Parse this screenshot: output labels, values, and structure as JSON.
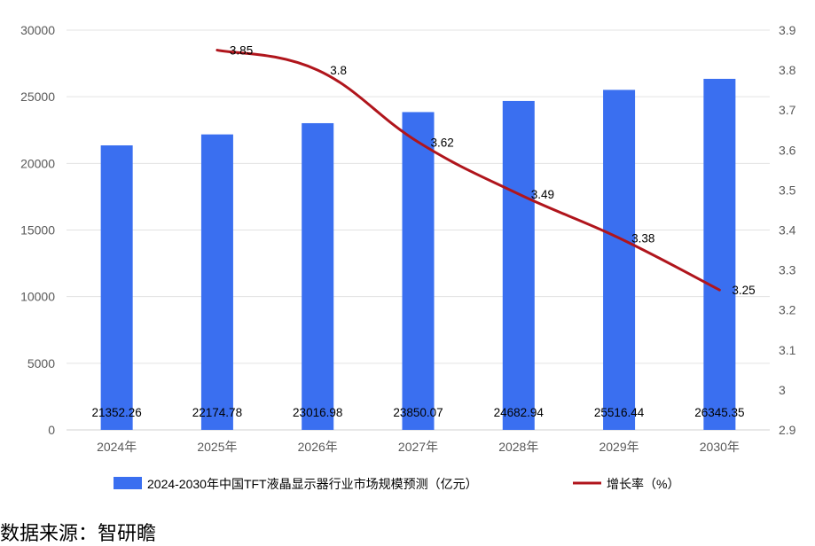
{
  "chart_data": {
    "type": "bar",
    "categories": [
      "2024年",
      "2025年",
      "2026年",
      "2027年",
      "2028年",
      "2029年",
      "2030年"
    ],
    "series": [
      {
        "name": "2024-2030年中国TFT液晶显示器行业市场规模预测（亿元）",
        "type": "bar",
        "axis": "left",
        "values": [
          21352.26,
          22174.78,
          23016.98,
          23850.07,
          24682.94,
          25516.44,
          26345.35
        ],
        "labels": [
          "21352.26",
          "22174.78",
          "23016.98",
          "23850.07",
          "24682.94",
          "25516.44",
          "26345.35"
        ],
        "color": "#3a6ff0"
      },
      {
        "name": "增长率（%）",
        "type": "line",
        "axis": "right",
        "values": [
          null,
          3.85,
          3.8,
          3.62,
          3.49,
          3.38,
          3.25
        ],
        "labels": [
          "",
          "3.85",
          "3.8",
          "3.62",
          "3.49",
          "3.38",
          "3.25"
        ],
        "color": "#b0151c"
      }
    ],
    "y_left": {
      "ylim": [
        0,
        30000
      ],
      "ticks": [
        0,
        5000,
        10000,
        15000,
        20000,
        25000,
        30000
      ],
      "tick_labels": [
        "0",
        "5000",
        "10000",
        "15000",
        "20000",
        "25000",
        "30000"
      ]
    },
    "y_right": {
      "ylim": [
        2.9,
        3.9
      ],
      "ticks": [
        2.9,
        3,
        3.1,
        3.2,
        3.3,
        3.4,
        3.5,
        3.6,
        3.7,
        3.8,
        3.9
      ],
      "tick_labels": [
        "2.9",
        "3",
        "3.1",
        "3.2",
        "3.3",
        "3.4",
        "3.5",
        "3.6",
        "3.7",
        "3.8",
        "3.9"
      ]
    },
    "grid": true,
    "legend": "bottom"
  },
  "source": "数据来源：智研瞻"
}
